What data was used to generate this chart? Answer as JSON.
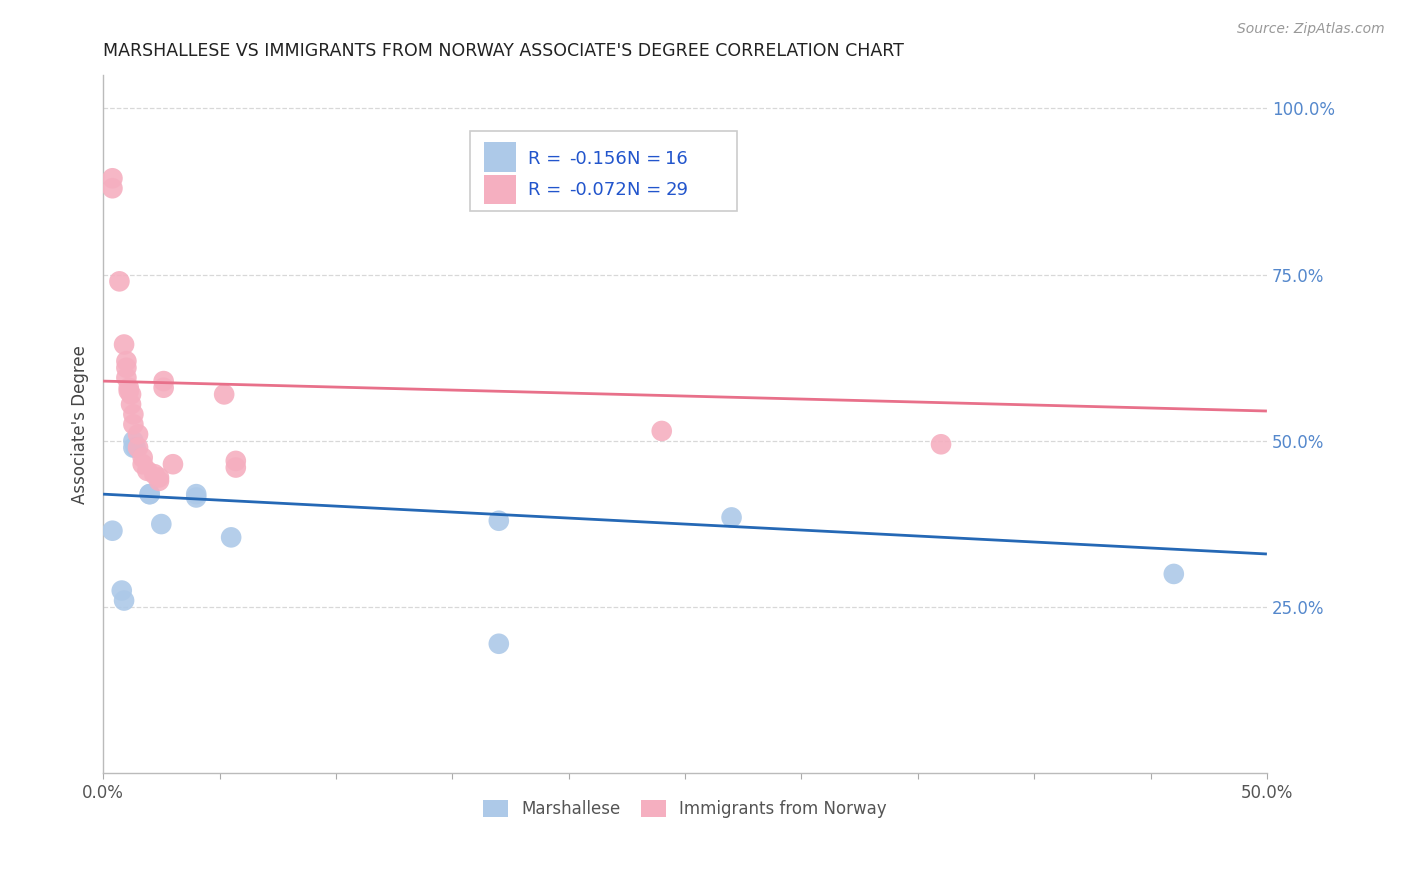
{
  "title": "MARSHALLESE VS IMMIGRANTS FROM NORWAY ASSOCIATE'S DEGREE CORRELATION CHART",
  "source": "Source: ZipAtlas.com",
  "ylabel": "Associate's Degree",
  "right_yticks": [
    "100.0%",
    "75.0%",
    "50.0%",
    "25.0%"
  ],
  "right_ytick_vals": [
    1.0,
    0.75,
    0.5,
    0.25
  ],
  "xlim": [
    0.0,
    0.5
  ],
  "ylim": [
    0.0,
    1.05
  ],
  "legend_r_blue": "-0.156",
  "legend_n_blue": "16",
  "legend_r_pink": "-0.072",
  "legend_n_pink": "29",
  "blue_color": "#adc9e8",
  "pink_color": "#f5afc0",
  "trend_blue": "#2568b5",
  "trend_pink": "#e8708a",
  "legend_text_color": "#2255cc",
  "blue_scatter": [
    [
      0.004,
      0.365
    ],
    [
      0.008,
      0.275
    ],
    [
      0.009,
      0.26
    ],
    [
      0.013,
      0.49
    ],
    [
      0.013,
      0.5
    ],
    [
      0.014,
      0.49
    ],
    [
      0.02,
      0.42
    ],
    [
      0.02,
      0.42
    ],
    [
      0.025,
      0.375
    ],
    [
      0.04,
      0.415
    ],
    [
      0.04,
      0.42
    ],
    [
      0.055,
      0.355
    ],
    [
      0.17,
      0.38
    ],
    [
      0.17,
      0.195
    ],
    [
      0.27,
      0.385
    ],
    [
      0.46,
      0.3
    ]
  ],
  "pink_scatter": [
    [
      0.004,
      0.895
    ],
    [
      0.004,
      0.88
    ],
    [
      0.007,
      0.74
    ],
    [
      0.009,
      0.645
    ],
    [
      0.01,
      0.62
    ],
    [
      0.01,
      0.61
    ],
    [
      0.01,
      0.595
    ],
    [
      0.011,
      0.58
    ],
    [
      0.011,
      0.575
    ],
    [
      0.012,
      0.57
    ],
    [
      0.012,
      0.555
    ],
    [
      0.013,
      0.54
    ],
    [
      0.013,
      0.525
    ],
    [
      0.015,
      0.51
    ],
    [
      0.015,
      0.49
    ],
    [
      0.017,
      0.475
    ],
    [
      0.017,
      0.465
    ],
    [
      0.019,
      0.455
    ],
    [
      0.022,
      0.45
    ],
    [
      0.024,
      0.445
    ],
    [
      0.024,
      0.44
    ],
    [
      0.026,
      0.59
    ],
    [
      0.026,
      0.58
    ],
    [
      0.03,
      0.465
    ],
    [
      0.052,
      0.57
    ],
    [
      0.057,
      0.47
    ],
    [
      0.057,
      0.46
    ],
    [
      0.24,
      0.515
    ],
    [
      0.36,
      0.495
    ]
  ],
  "blue_trend_x": [
    0.0,
    0.5
  ],
  "blue_trend_y": [
    0.42,
    0.33
  ],
  "pink_trend_x": [
    0.0,
    0.5
  ],
  "pink_trend_y": [
    0.59,
    0.545
  ],
  "background_color": "#ffffff",
  "grid_color": "#d8d8d8"
}
